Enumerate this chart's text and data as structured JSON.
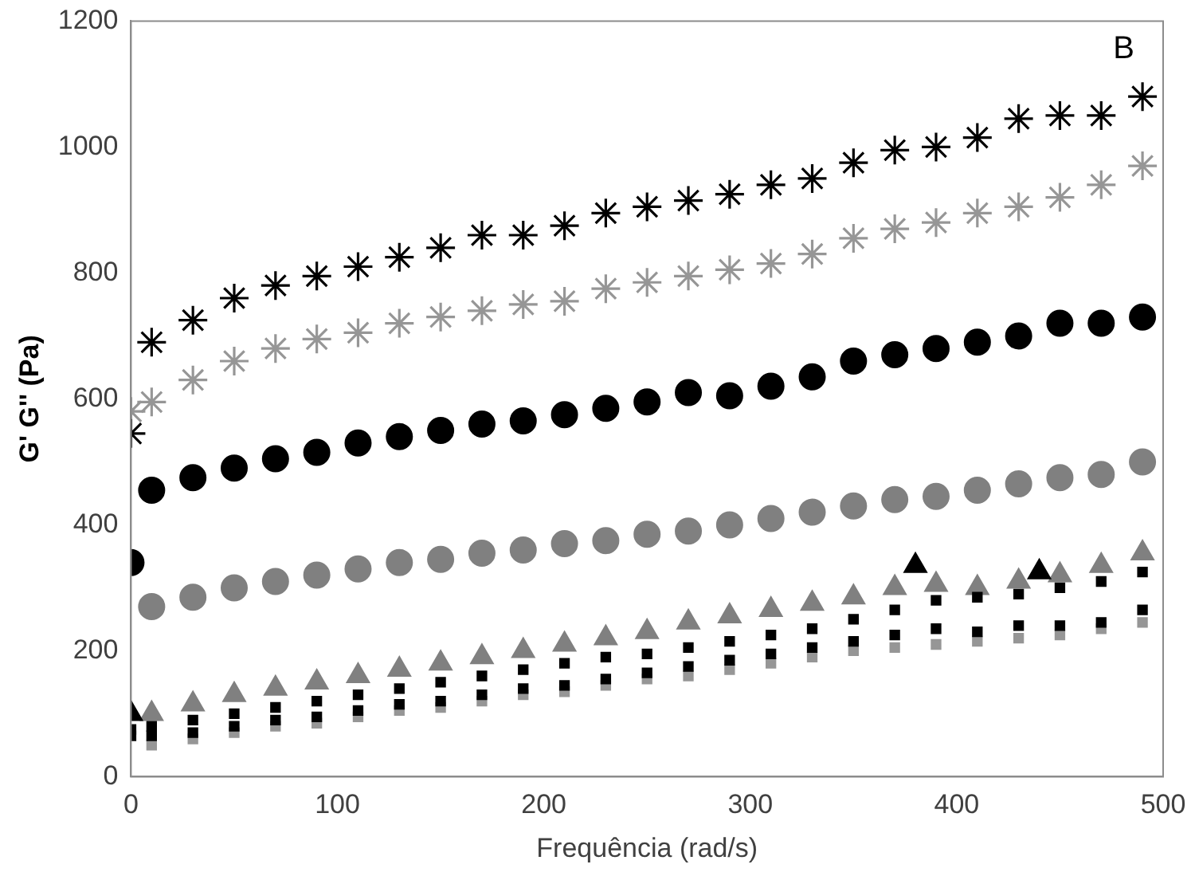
{
  "chart_data": {
    "type": "scatter",
    "xlabel": "Frequência (rad/s)",
    "ylabel": "G' G'' (Pa)",
    "annotations": [
      "B"
    ],
    "x": [
      0,
      10,
      30,
      50,
      70,
      90,
      110,
      130,
      150,
      170,
      190,
      210,
      230,
      250,
      270,
      290,
      310,
      330,
      350,
      370,
      390,
      410,
      430,
      450,
      470,
      490
    ],
    "xlim": [
      0,
      500
    ],
    "xticks": [
      0,
      100,
      200,
      300,
      400,
      500
    ],
    "ylim": [
      0,
      1200
    ],
    "yticks": [
      0,
      200,
      400,
      600,
      800,
      1000,
      1200
    ],
    "grid": false,
    "legend": false,
    "series": [
      {
        "color": "#000000",
        "marker": "cross",
        "values": [
          545,
          690,
          725,
          760,
          780,
          795,
          810,
          825,
          840,
          860,
          860,
          875,
          895,
          905,
          915,
          925,
          940,
          950,
          975,
          995,
          1000,
          1015,
          1045,
          1050,
          1050,
          1080
        ]
      },
      {
        "color": "#969696",
        "marker": "cross",
        "values": [
          580,
          595,
          630,
          660,
          680,
          695,
          705,
          720,
          730,
          740,
          750,
          755,
          775,
          785,
          795,
          805,
          815,
          830,
          855,
          870,
          880,
          895,
          905,
          920,
          940,
          970
        ]
      },
      {
        "color": "#000000",
        "marker": "circle",
        "values": [
          340,
          455,
          475,
          490,
          505,
          515,
          530,
          540,
          550,
          560,
          565,
          575,
          585,
          595,
          610,
          605,
          620,
          635,
          660,
          670,
          680,
          690,
          700,
          720,
          720,
          730
        ]
      },
      {
        "color": "#808080",
        "marker": "circle",
        "values": [
          null,
          270,
          285,
          300,
          310,
          320,
          330,
          340,
          345,
          355,
          360,
          370,
          375,
          385,
          390,
          400,
          410,
          420,
          430,
          440,
          445,
          455,
          465,
          475,
          480,
          500
        ]
      },
      {
        "color": "#000000",
        "marker": "square",
        "values": [
          75,
          80,
          90,
          100,
          110,
          120,
          130,
          140,
          150,
          160,
          170,
          180,
          190,
          195,
          205,
          215,
          225,
          235,
          250,
          265,
          280,
          285,
          290,
          300,
          310,
          325
        ]
      },
      {
        "color": "#000000",
        "marker": "square",
        "values": [
          65,
          65,
          70,
          80,
          90,
          95,
          105,
          115,
          120,
          130,
          140,
          145,
          155,
          165,
          175,
          185,
          195,
          205,
          215,
          225,
          235,
          230,
          240,
          240,
          245,
          265
        ]
      },
      {
        "color": "#969696",
        "marker": "square",
        "values": [
          null,
          50,
          60,
          70,
          80,
          85,
          95,
          105,
          110,
          120,
          130,
          135,
          145,
          155,
          160,
          170,
          180,
          190,
          200,
          205,
          210,
          215,
          220,
          225,
          235,
          245
        ]
      },
      {
        "color": "#000000",
        "marker": "triangle",
        "x": [
          0,
          380,
          440
        ],
        "values": [
          100,
          335,
          325
        ]
      },
      {
        "color": "#808080",
        "marker": "triangle",
        "values": [
          null,
          100,
          115,
          130,
          140,
          150,
          160,
          170,
          180,
          190,
          200,
          210,
          220,
          230,
          245,
          255,
          265,
          275,
          285,
          300,
          305,
          300,
          310,
          320,
          335,
          355
        ]
      }
    ]
  }
}
